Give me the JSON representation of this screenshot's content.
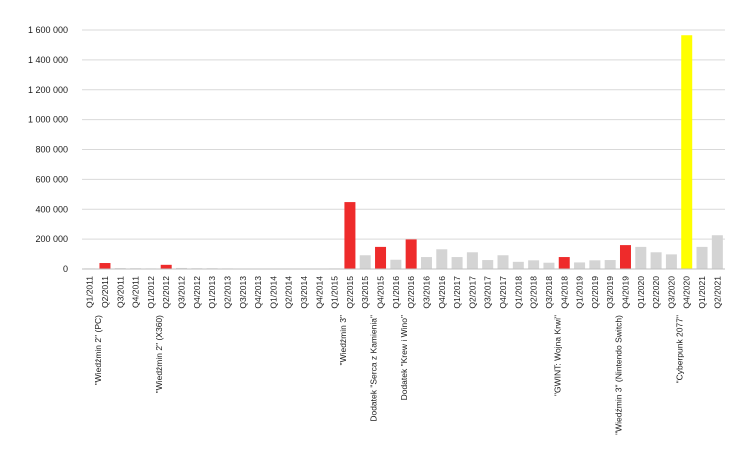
{
  "chart_data": {
    "type": "bar",
    "ylim": [
      0,
      1600000
    ],
    "yticks": [
      0,
      200000,
      400000,
      600000,
      800000,
      1000000,
      1200000,
      1400000,
      1600000
    ],
    "ytick_labels": [
      "0",
      "200 000",
      "400 000",
      "600 000",
      "800 000",
      "1 000 000",
      "1 200 000",
      "1 400 000",
      "1 600 000"
    ],
    "grid": true,
    "colors": {
      "release": "#ee2b2b",
      "regular": "#d4d4d4",
      "highlight": "#ffff00",
      "grid": "#d9d9d9"
    },
    "categories": [
      "Q1/2011",
      "Q2/2011",
      "Q3/2011",
      "Q4/2011",
      "Q1/2012",
      "Q2/2012",
      "Q3/2012",
      "Q4/2012",
      "Q1/2013",
      "Q2/2013",
      "Q3/2013",
      "Q4/2013",
      "Q1/2014",
      "Q2/2014",
      "Q3/2014",
      "Q4/2014",
      "Q1/2015",
      "Q2/2015",
      "Q3/2015",
      "Q4/2015",
      "Q1/2016",
      "Q2/2016",
      "Q3/2016",
      "Q4/2016",
      "Q1/2017",
      "Q2/2017",
      "Q3/2017",
      "Q4/2017",
      "Q1/2018",
      "Q2/2018",
      "Q3/2018",
      "Q4/2018",
      "Q1/2019",
      "Q2/2019",
      "Q3/2019",
      "Q4/2019",
      "Q1/2020",
      "Q2/2020",
      "Q3/2020",
      "Q4/2020",
      "Q1/2021",
      "Q2/2021"
    ],
    "annotations": [
      "",
      "\"Wiedźmin 2\" (PC)",
      "",
      "",
      "",
      "\"Wiedźmin 2\" (X360)",
      "",
      "",
      "",
      "",
      "",
      "",
      "",
      "",
      "",
      "",
      "",
      "\"Wiedźmin 3\"",
      "",
      "Dodatek \"Serca z Kamienia\"",
      "",
      "Dodatek \"Krew i Wino\"",
      "",
      "",
      "",
      "",
      "",
      "",
      "",
      "",
      "",
      "\"GWINT: Wojna Krwi\"",
      "",
      "",
      "",
      "\"Wiedźmin 3\" (Nintendo Switch)",
      "",
      "",
      "",
      "\"Cyberpunk 2077\"",
      "",
      ""
    ],
    "values": [
      4000,
      40000,
      6000,
      5000,
      4000,
      28000,
      7000,
      5000,
      5000,
      4000,
      3000,
      3000,
      3000,
      3000,
      3000,
      3000,
      4000,
      448000,
      92000,
      148000,
      62000,
      198000,
      80000,
      132000,
      80000,
      112000,
      60000,
      92000,
      48000,
      58000,
      42000,
      80000,
      44000,
      58000,
      60000,
      160000,
      148000,
      112000,
      98000,
      1565000,
      148000,
      226000
    ],
    "bar_types": [
      "regular",
      "release",
      "regular",
      "regular",
      "regular",
      "release",
      "regular",
      "regular",
      "regular",
      "regular",
      "regular",
      "regular",
      "regular",
      "regular",
      "regular",
      "regular",
      "regular",
      "release",
      "regular",
      "release",
      "regular",
      "release",
      "regular",
      "regular",
      "regular",
      "regular",
      "regular",
      "regular",
      "regular",
      "regular",
      "regular",
      "release",
      "regular",
      "regular",
      "regular",
      "release",
      "regular",
      "regular",
      "regular",
      "highlight",
      "regular",
      "regular"
    ]
  }
}
